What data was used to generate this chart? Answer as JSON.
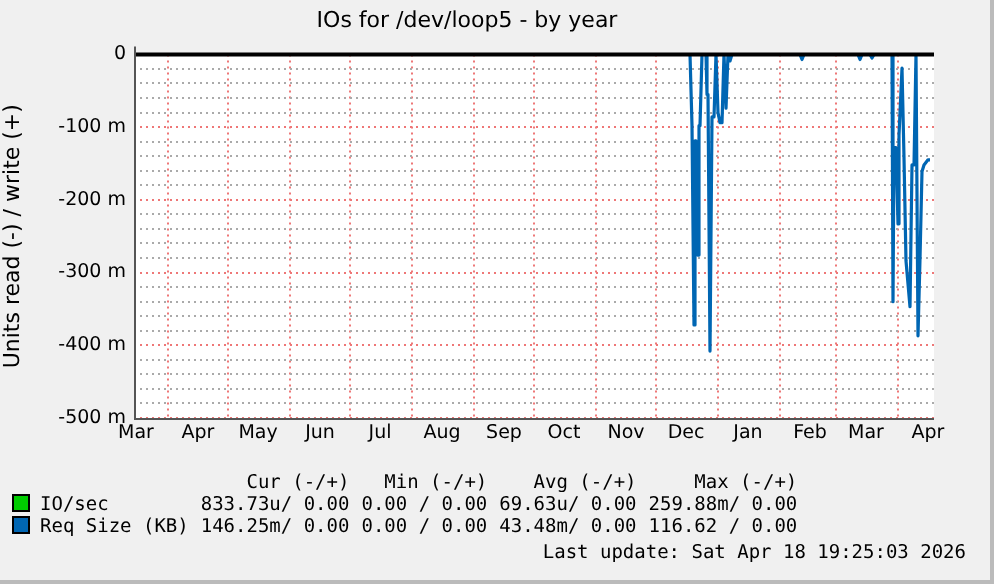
{
  "chart_data": {
    "type": "line",
    "title": "IOs for /dev/loop5 - by year",
    "ylabel": "Units read (-) / write (+)",
    "x": [
      "2025-03-15",
      "2025-12-18",
      "2025-12-19",
      "2025-12-20",
      "2025-12-20T12:00",
      "2025-12-21",
      "2025-12-22",
      "2025-12-22T12:00",
      "2025-12-23",
      "2025-12-24",
      "2025-12-26",
      "2025-12-26T12:00",
      "2025-12-27",
      "2025-12-28",
      "2025-12-29",
      "2025-12-30",
      "2025-12-31",
      "2026-01-01",
      "2026-01-02",
      "2026-01-03",
      "2026-01-04",
      "2026-01-05",
      "2026-01-06",
      "2026-01-07",
      "2026-01-08",
      "2026-02-11",
      "2026-02-12",
      "2026-02-13",
      "2026-03-12",
      "2026-03-13",
      "2026-03-14",
      "2026-03-18",
      "2026-03-19",
      "2026-03-20",
      "2026-03-29",
      "2026-03-29T12:00",
      "2026-03-30",
      "2026-03-31",
      "2026-04-01",
      "2026-04-01T12:00",
      "2026-04-03",
      "2026-04-04",
      "2026-04-05",
      "2026-04-07",
      "2026-04-08",
      "2026-04-09",
      "2026-04-10",
      "2026-04-11",
      "2026-04-12",
      "2026-04-13",
      "2026-04-14",
      "2026-04-16",
      "2026-04-17"
    ],
    "series": [
      {
        "name": "IO/sec",
        "color": "#00cc00",
        "values": [
          null,
          null,
          null,
          null,
          null,
          null,
          null,
          null,
          null,
          null,
          null,
          null,
          null,
          null,
          null,
          null,
          null,
          null,
          null,
          null,
          null,
          null,
          null,
          null,
          null,
          null,
          null,
          null,
          null,
          null,
          null,
          null,
          null,
          null,
          null,
          null,
          null,
          null,
          null,
          null,
          null,
          null,
          null,
          null,
          null,
          null,
          null,
          null,
          null,
          null,
          null,
          null,
          null
        ]
      },
      {
        "name": "Req Size (KB)",
        "color": "#0066b3",
        "values": [
          0,
          0,
          -98,
          -372,
          -119,
          -119,
          -276,
          -98,
          -98,
          0,
          0,
          -55,
          -55,
          -408,
          -86,
          -86,
          0,
          -80,
          -94,
          -94,
          0,
          -74,
          0,
          -9,
          0,
          0,
          -7,
          0,
          0,
          -7,
          0,
          0,
          -5,
          0,
          0,
          -340,
          -128,
          -128,
          -233,
          -111,
          -19,
          -142,
          -284,
          -347,
          -152,
          -152,
          0,
          -387,
          -281,
          -161,
          -152,
          -145,
          -145
        ]
      }
    ],
    "xlim": [
      "2025-03-15",
      "2026-04-19"
    ],
    "xticks": [
      {
        "value": "2025-03-16",
        "label": "Mar"
      },
      {
        "value": "2025-04-01",
        "label": null
      },
      {
        "value": "2025-04-16",
        "label": "Apr"
      },
      {
        "value": "2025-05-01",
        "label": null
      },
      {
        "value": "2025-05-16",
        "label": "May"
      },
      {
        "value": "2025-06-01",
        "label": null
      },
      {
        "value": "2025-06-16",
        "label": "Jun"
      },
      {
        "value": "2025-07-01",
        "label": null
      },
      {
        "value": "2025-07-16",
        "label": "Jul"
      },
      {
        "value": "2025-08-01",
        "label": null
      },
      {
        "value": "2025-08-16",
        "label": "Aug"
      },
      {
        "value": "2025-09-01",
        "label": null
      },
      {
        "value": "2025-09-16",
        "label": "Sep"
      },
      {
        "value": "2025-10-01",
        "label": null
      },
      {
        "value": "2025-10-16",
        "label": "Oct"
      },
      {
        "value": "2025-11-01",
        "label": null
      },
      {
        "value": "2025-11-16",
        "label": "Nov"
      },
      {
        "value": "2025-12-01",
        "label": null
      },
      {
        "value": "2025-12-16",
        "label": "Dec"
      },
      {
        "value": "2026-01-01",
        "label": null
      },
      {
        "value": "2026-01-16",
        "label": "Jan"
      },
      {
        "value": "2026-02-01",
        "label": null
      },
      {
        "value": "2026-02-16",
        "label": "Feb"
      },
      {
        "value": "2026-03-01",
        "label": null
      },
      {
        "value": "2026-03-16",
        "label": "Mar"
      },
      {
        "value": "2026-04-01",
        "label": null
      },
      {
        "value": "2026-04-16",
        "label": "Apr"
      }
    ],
    "ylim": [
      -500,
      0
    ],
    "yticks": [
      0,
      {
        "value": -20,
        "label": null
      },
      {
        "value": -40,
        "label": null
      },
      {
        "value": -60,
        "label": null
      },
      {
        "value": -80,
        "label": null
      },
      {
        "value": -100,
        "label": "-100 m"
      },
      {
        "value": -120,
        "label": null
      },
      {
        "value": -140,
        "label": null
      },
      {
        "value": -160,
        "label": null
      },
      {
        "value": -180,
        "label": null
      },
      {
        "value": -200,
        "label": "-200 m"
      },
      {
        "value": -220,
        "label": null
      },
      {
        "value": -240,
        "label": null
      },
      {
        "value": -260,
        "label": null
      },
      {
        "value": -280,
        "label": null
      },
      {
        "value": -300,
        "label": "-300 m"
      },
      {
        "value": -320,
        "label": null
      },
      {
        "value": -340,
        "label": null
      },
      {
        "value": -360,
        "label": null
      },
      {
        "value": -380,
        "label": null
      },
      {
        "value": -400,
        "label": "-400 m"
      },
      {
        "value": -420,
        "label": null
      },
      {
        "value": -440,
        "label": null
      },
      {
        "value": -460,
        "label": null
      },
      {
        "value": -480,
        "label": null
      },
      {
        "value": -500,
        "label": "-500 m"
      }
    ],
    "grid": true,
    "legend": "bottom",
    "ref_lines": [
      {
        "axis": "y",
        "value": 0,
        "color": "#000000"
      }
    ],
    "annotations": [
      "Cur (-/+)",
      "Min (-/+)",
      "Avg (-/+)",
      "Max (-/+)",
      "833.73u/ 0.00",
      "0.00 / 0.00",
      "69.63u/ 0.00",
      "259.88m/ 0.00",
      "146.25m/ 0.00",
      "0.00 / 0.00",
      "43.48m/ 0.00",
      "116.62 / 0.00",
      "Last update: Sat Apr 18 19:25:03 2026"
    ]
  }
}
